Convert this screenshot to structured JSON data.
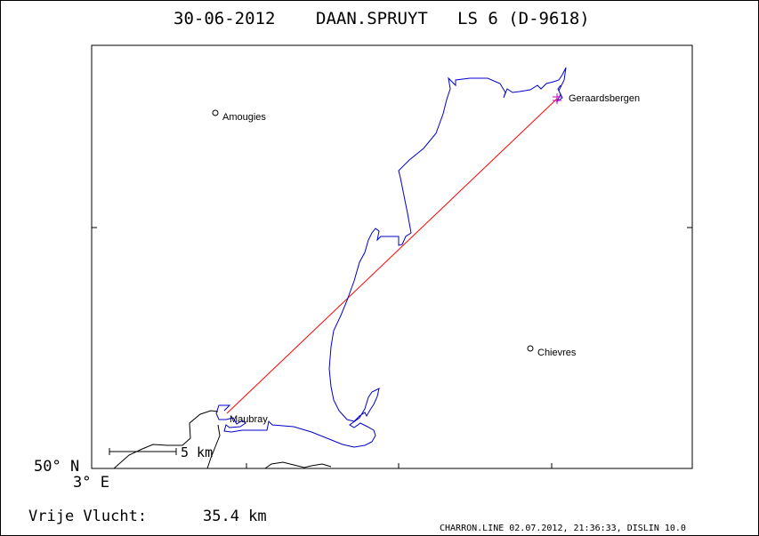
{
  "header": {
    "date": "30-06-2012",
    "pilot": "DAAN.SPRUYT",
    "glider": "LS 6 (D-9618)"
  },
  "map": {
    "lat_label": "50° N",
    "lon_label": "3° E",
    "scale_label": "5 km",
    "places": [
      {
        "name": "Geraardsbergen"
      },
      {
        "name": "Amougies"
      },
      {
        "name": "Chievres"
      },
      {
        "name": "Maubray"
      }
    ],
    "colors": {
      "track": "#0000cc",
      "task": "#ff0000",
      "start_marker": "#cc00cc",
      "border": "#000000"
    }
  },
  "footer": {
    "distance_label": "Vrije Vlucht:",
    "distance_value": "35.4 km",
    "credits": "CHARRON.LINE 02.07.2012, 21:36:33, DISLIN 10.0"
  }
}
